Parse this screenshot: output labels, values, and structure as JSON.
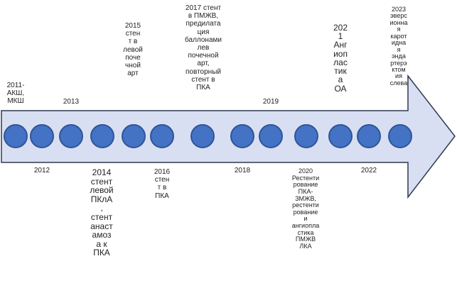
{
  "colors": {
    "arrow_fill": "#d9dff2",
    "arrow_stroke": "#2f3a4f",
    "dot_fill": "#4472c4",
    "dot_border": "#2f5597"
  },
  "events": [
    {
      "year_text": "2011-\nАКШ,\nМКШ",
      "position": "above"
    },
    {
      "year_text": "2012",
      "position": "below"
    },
    {
      "year_text": "2013",
      "position": "above"
    },
    {
      "year_text": "2014\nстент\nлевой\nПКлА\n,\nстент\nанаст\nамоз\nа к\nПКА",
      "position": "below"
    },
    {
      "year_text": "2015\nстен\nт в\nлевой\nпоче\nчной\nарт",
      "position": "above"
    },
    {
      "year_text": "2016\nстен\nт в\nПКА",
      "position": "below"
    },
    {
      "year_text": "2017 стент\nв ПМЖВ,\nпредилата\nция\nбаллонами\nлев\nпочечной\nарт,\nповторный\nстент в\nПКА",
      "position": "above"
    },
    {
      "year_text": "2018",
      "position": "below"
    },
    {
      "year_text": "2019",
      "position": "above"
    },
    {
      "year_text": "2020\nРестенти\nрование\nПКА-\nЗМЖВ,\nрестенти\nрование\nи\nангиопла\nстика\nПМЖВ\nЛКА",
      "position": "below"
    },
    {
      "year_text": "202\n1\nАнг\nиоп\nлас\nтик\nа\nОА",
      "position": "above"
    },
    {
      "year_text": "2022",
      "position": "below"
    },
    {
      "year_text": "2023\nэверс\nионна\nя\nкарот\nидна\nя\nэнда\nртерэ\nктом\nия\nслева",
      "position": "above"
    }
  ]
}
